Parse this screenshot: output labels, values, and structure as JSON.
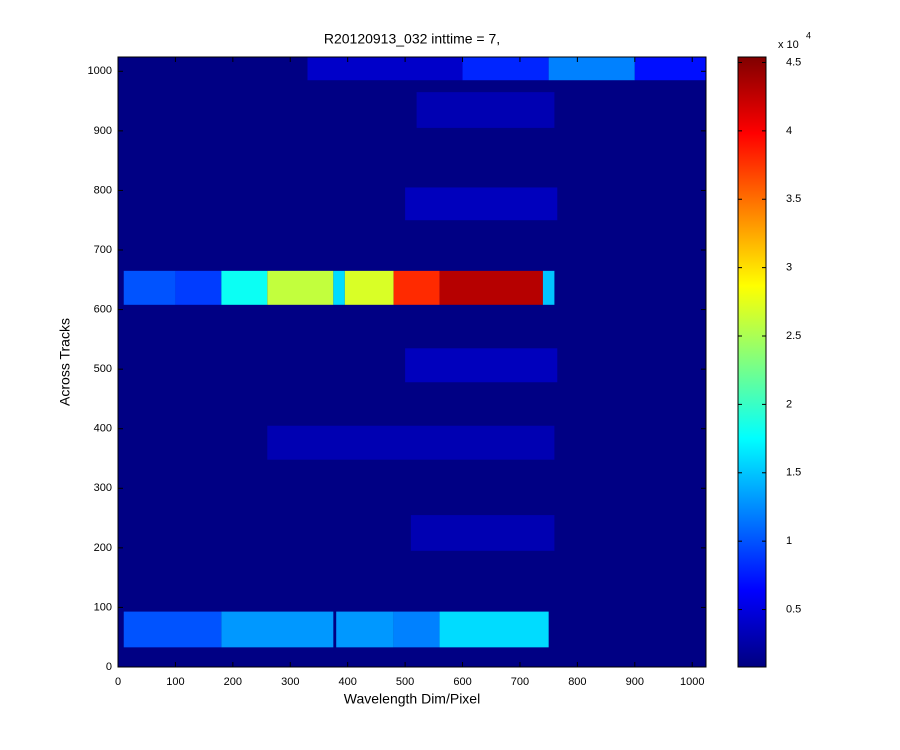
{
  "chart_data": {
    "type": "heatmap",
    "title": "R20120913_032 inttime = 7,",
    "xlabel": "Wavelength Dim/Pixel",
    "ylabel": "Across Tracks",
    "xlim": [
      0,
      1024
    ],
    "ylim": [
      0,
      1024
    ],
    "xticks": [
      0,
      100,
      200,
      300,
      400,
      500,
      600,
      700,
      800,
      900,
      1000
    ],
    "yticks": [
      0,
      100,
      200,
      300,
      400,
      500,
      600,
      700,
      800,
      900,
      1000
    ],
    "background": 0.1,
    "regions": [
      {
        "x": [
          10,
          180
        ],
        "y": [
          33,
          93
        ],
        "value": 1.0
      },
      {
        "x": [
          180,
          375
        ],
        "y": [
          33,
          93
        ],
        "value": 1.3
      },
      {
        "x": [
          380,
          480
        ],
        "y": [
          33,
          93
        ],
        "value": 1.3
      },
      {
        "x": [
          480,
          560
        ],
        "y": [
          33,
          93
        ],
        "value": 1.2
      },
      {
        "x": [
          560,
          750
        ],
        "y": [
          33,
          93
        ],
        "value": 1.6
      },
      {
        "x": [
          10,
          100
        ],
        "y": [
          608,
          665
        ],
        "value": 1.0
      },
      {
        "x": [
          100,
          180
        ],
        "y": [
          608,
          665
        ],
        "value": 0.9
      },
      {
        "x": [
          180,
          260
        ],
        "y": [
          608,
          665
        ],
        "value": 1.8
      },
      {
        "x": [
          260,
          375
        ],
        "y": [
          608,
          665
        ],
        "value": 2.6
      },
      {
        "x": [
          375,
          395
        ],
        "y": [
          608,
          665
        ],
        "value": 1.6
      },
      {
        "x": [
          395,
          480
        ],
        "y": [
          608,
          665
        ],
        "value": 2.7
      },
      {
        "x": [
          480,
          560
        ],
        "y": [
          608,
          665
        ],
        "value": 3.8
      },
      {
        "x": [
          560,
          740
        ],
        "y": [
          608,
          665
        ],
        "value": 4.3
      },
      {
        "x": [
          740,
          760
        ],
        "y": [
          608,
          665
        ],
        "value": 1.5
      },
      {
        "x": [
          500,
          765
        ],
        "y": [
          478,
          535
        ],
        "value": 0.35
      },
      {
        "x": [
          500,
          765
        ],
        "y": [
          750,
          805
        ],
        "value": 0.35
      },
      {
        "x": [
          260,
          760
        ],
        "y": [
          348,
          405
        ],
        "value": 0.3
      },
      {
        "x": [
          510,
          760
        ],
        "y": [
          195,
          255
        ],
        "value": 0.3
      },
      {
        "x": [
          520,
          760
        ],
        "y": [
          905,
          965
        ],
        "value": 0.3
      },
      {
        "x": [
          330,
          600
        ],
        "y": [
          985,
          1024
        ],
        "value": 0.4
      },
      {
        "x": [
          600,
          750
        ],
        "y": [
          985,
          1024
        ],
        "value": 0.8
      },
      {
        "x": [
          750,
          900
        ],
        "y": [
          985,
          1024
        ],
        "value": 1.2
      },
      {
        "x": [
          900,
          1024
        ],
        "y": [
          985,
          1024
        ],
        "value": 0.7
      }
    ],
    "colorbar": {
      "clim": [
        0.08,
        4.54
      ],
      "ticks": [
        0.5,
        1,
        1.5,
        2,
        2.5,
        3,
        3.5,
        4,
        4.5
      ],
      "multiplier": "x 10",
      "exponent": "4"
    }
  }
}
